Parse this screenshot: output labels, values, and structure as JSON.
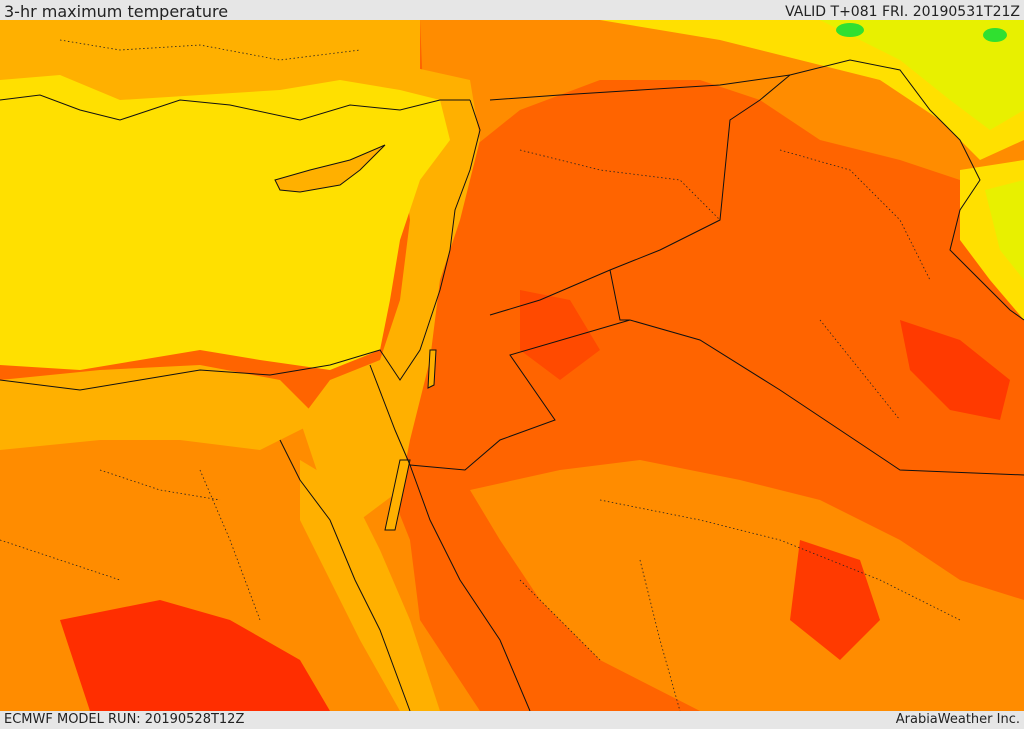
{
  "header": {
    "title": "3-hr maximum temperature",
    "valid": "VALID T+081 FRI. 20190531T21Z"
  },
  "footer": {
    "model_run": "ECMWF MODEL RUN: 20190528T12Z",
    "credit": "ArabiaWeather Inc."
  },
  "colors": {
    "sea_yellow": "#ffe000",
    "light_orange": "#ffb000",
    "orange": "#ff8c00",
    "dark_orange": "#ff6400",
    "red_orange": "#ff4a00",
    "red": "#ff2e00",
    "yellow_green": "#e8f000",
    "green": "#30e030",
    "border": "#111111"
  }
}
